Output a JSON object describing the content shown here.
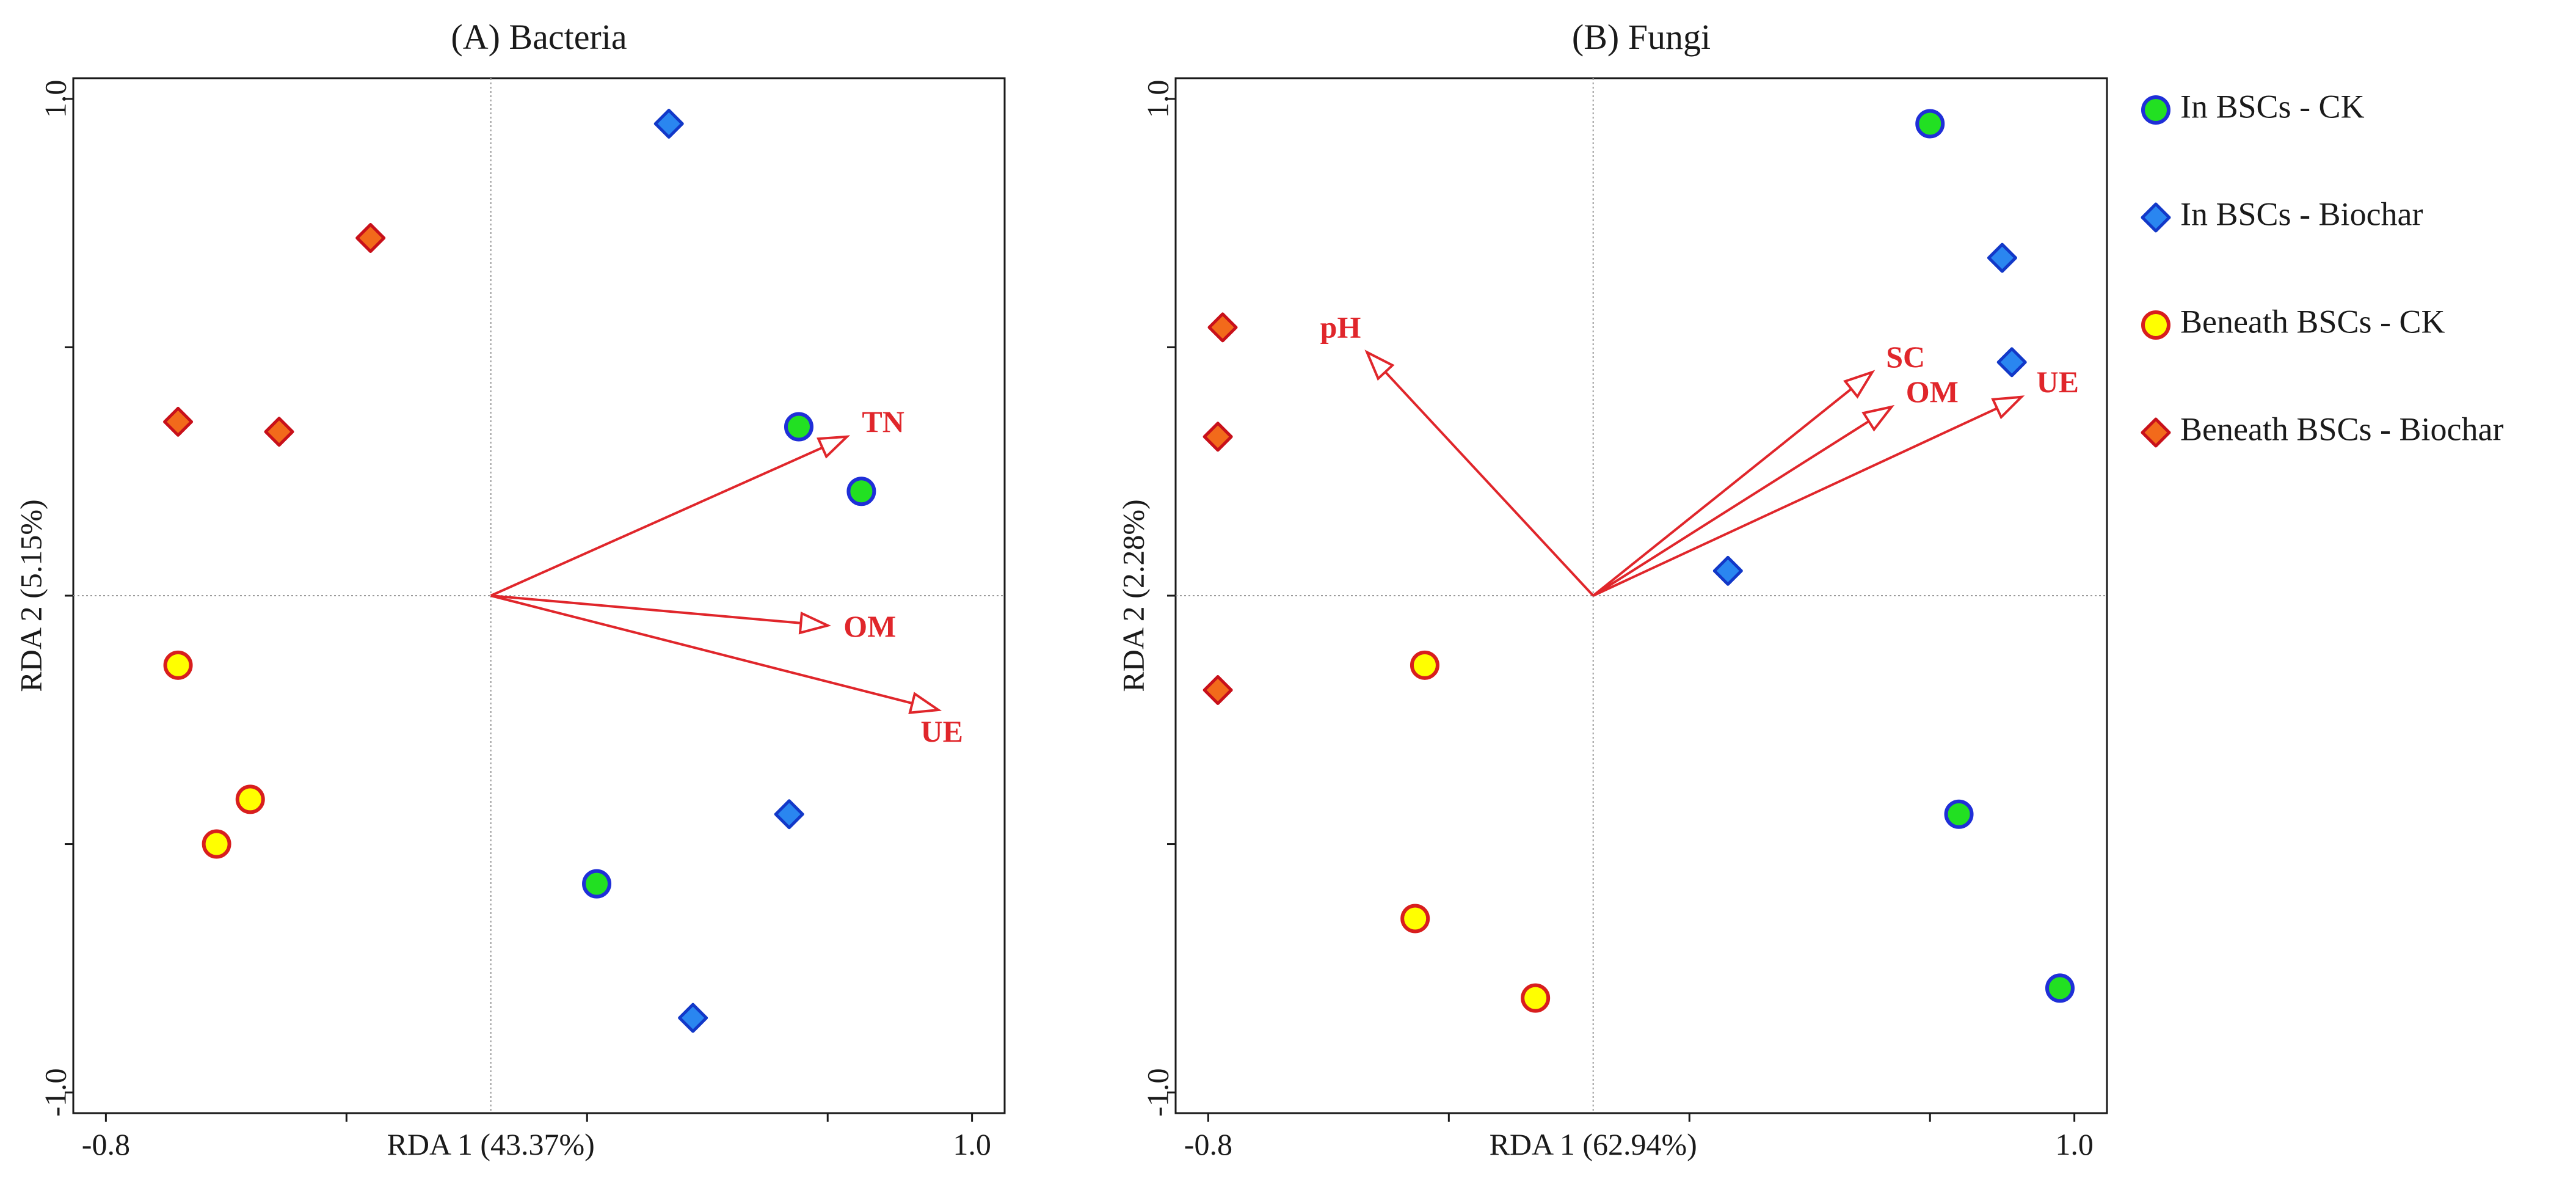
{
  "chart_data": [
    {
      "type": "scatter",
      "title": "(A) Bacteria",
      "xlabel": "RDA 1 (43.37%)",
      "ylabel": "RDA 2 (5.15%)",
      "xlim": [
        -0.8,
        1.0
      ],
      "ylim": [
        -1.0,
        1.0
      ],
      "x_tick_labels": [
        "-0.8",
        "1.0"
      ],
      "y_tick_labels": [
        "1.0",
        "-1.0"
      ],
      "series": [
        {
          "name": "In BSCs - CK",
          "marker": "circle",
          "fill": "#22e022",
          "stroke": "#1f2fd8",
          "points": [
            [
              0.64,
              0.34
            ],
            [
              0.77,
              0.21
            ],
            [
              0.22,
              -0.58
            ]
          ]
        },
        {
          "name": "In BSCs - Biochar",
          "marker": "diamond",
          "fill": "#2a86f0",
          "stroke": "#1238c8",
          "points": [
            [
              0.37,
              0.95
            ],
            [
              0.62,
              -0.44
            ],
            [
              0.42,
              -0.85
            ]
          ]
        },
        {
          "name": "Beneath BSCs - CK",
          "marker": "circle",
          "fill": "#ffff00",
          "stroke": "#d81e1e",
          "points": [
            [
              -0.65,
              -0.14
            ],
            [
              -0.5,
              -0.41
            ],
            [
              -0.57,
              -0.5
            ]
          ]
        },
        {
          "name": "Beneath BSCs - Biochar",
          "marker": "diamond",
          "fill": "#f26a1b",
          "stroke": "#c8101a",
          "points": [
            [
              -0.25,
              0.72
            ],
            [
              -0.65,
              0.35
            ],
            [
              -0.44,
              0.33
            ]
          ]
        }
      ],
      "arrows": [
        {
          "label": "TN",
          "x": 0.74,
          "y": 0.32
        },
        {
          "label": "OM",
          "x": 0.7,
          "y": -0.06
        },
        {
          "label": "UE",
          "x": 0.93,
          "y": -0.23
        }
      ]
    },
    {
      "type": "scatter",
      "title": "(B) Fungi",
      "xlabel": "RDA 1 (62.94%)",
      "ylabel": "RDA 2 (2.28%)",
      "xlim": [
        -0.8,
        1.0
      ],
      "ylim": [
        -1.0,
        1.0
      ],
      "x_tick_labels": [
        "-0.8",
        "1.0"
      ],
      "y_tick_labels": [
        "1.0",
        "-1.0"
      ],
      "series": [
        {
          "name": "In BSCs - CK",
          "marker": "circle",
          "fill": "#22e022",
          "stroke": "#1f2fd8",
          "points": [
            [
              0.7,
              0.95
            ],
            [
              0.76,
              -0.44
            ],
            [
              0.97,
              -0.79
            ]
          ]
        },
        {
          "name": "In BSCs - Biochar",
          "marker": "diamond",
          "fill": "#2a86f0",
          "stroke": "#1238c8",
          "points": [
            [
              0.85,
              0.68
            ],
            [
              0.87,
              0.47
            ],
            [
              0.28,
              0.05
            ]
          ]
        },
        {
          "name": "Beneath BSCs - CK",
          "marker": "circle",
          "fill": "#ffff00",
          "stroke": "#d81e1e",
          "points": [
            [
              -0.35,
              -0.14
            ],
            [
              -0.37,
              -0.65
            ],
            [
              -0.12,
              -0.81
            ]
          ]
        },
        {
          "name": "Beneath BSCs - Biochar",
          "marker": "diamond",
          "fill": "#f26a1b",
          "stroke": "#c8101a",
          "points": [
            [
              -0.77,
              0.54
            ],
            [
              -0.78,
              0.32
            ],
            [
              -0.78,
              -0.19
            ]
          ]
        }
      ],
      "arrows": [
        {
          "label": "pH",
          "x": -0.47,
          "y": 0.49
        },
        {
          "label": "SC",
          "x": 0.58,
          "y": 0.45
        },
        {
          "label": "OM",
          "x": 0.62,
          "y": 0.38
        },
        {
          "label": "UE",
          "x": 0.89,
          "y": 0.4
        }
      ]
    }
  ],
  "legend": {
    "items": [
      {
        "label": "In BSCs - CK",
        "marker": "circle",
        "fill": "#22e022",
        "stroke": "#1f2fd8"
      },
      {
        "label": "In BSCs - Biochar",
        "marker": "diamond",
        "fill": "#2a86f0",
        "stroke": "#1238c8"
      },
      {
        "label": "Beneath BSCs - CK",
        "marker": "circle",
        "fill": "#ffff00",
        "stroke": "#d81e1e"
      },
      {
        "label": "Beneath BSCs - Biochar",
        "marker": "diamond",
        "fill": "#f26a1b",
        "stroke": "#c8101a"
      }
    ]
  },
  "colors": {
    "arrow": "#e0262b",
    "axis": "#1a1a1a",
    "zero_line": "#9a9a9a"
  }
}
